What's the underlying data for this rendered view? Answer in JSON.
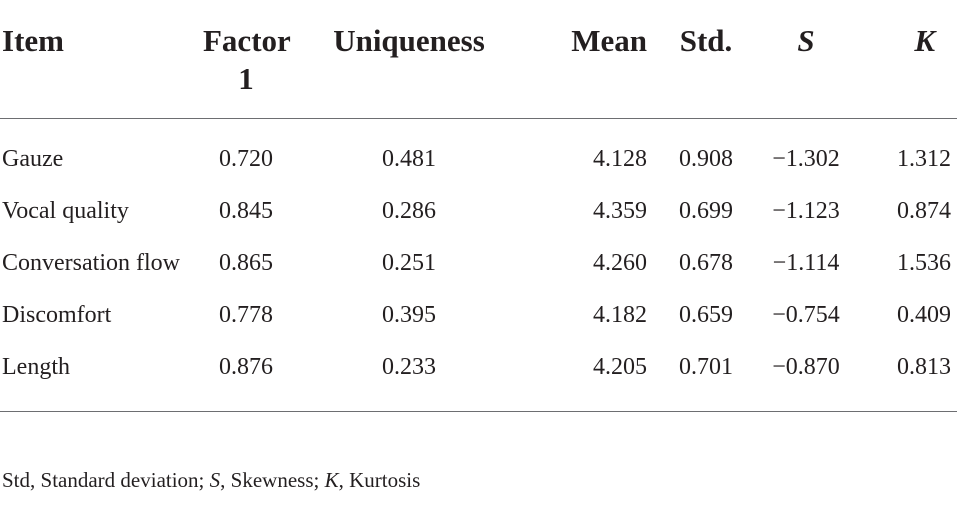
{
  "table": {
    "headers": {
      "item": "Item",
      "factor1": "Factor 1",
      "uniqueness": "Uniqueness",
      "mean": "Mean",
      "std": "Std.",
      "s": "S",
      "k": "K"
    },
    "rows": [
      {
        "item": "Gauze",
        "factor1": "0.720",
        "uniqueness": "0.481",
        "mean": "4.128",
        "std": "0.908",
        "s": "−1.302",
        "k": "1.312"
      },
      {
        "item": "Vocal quality",
        "factor1": "0.845",
        "uniqueness": "0.286",
        "mean": "4.359",
        "std": "0.699",
        "s": "−1.123",
        "k": "0.874"
      },
      {
        "item": "Conversation flow",
        "factor1": "0.865",
        "uniqueness": "0.251",
        "mean": "4.260",
        "std": "0.678",
        "s": "−1.114",
        "k": "1.536"
      },
      {
        "item": "Discomfort",
        "factor1": "0.778",
        "uniqueness": "0.395",
        "mean": "4.182",
        "std": "0.659",
        "s": "−0.754",
        "k": "0.409"
      },
      {
        "item": "Length",
        "factor1": "0.876",
        "uniqueness": "0.233",
        "mean": "4.205",
        "std": "0.701",
        "s": "−0.870",
        "k": "0.813"
      }
    ]
  },
  "footnote": {
    "std_abbr": "Std, Standard deviation; ",
    "s_abbr": "S",
    "s_def": ", Skewness; ",
    "k_abbr": "K",
    "k_def": ", Kurtosis"
  }
}
